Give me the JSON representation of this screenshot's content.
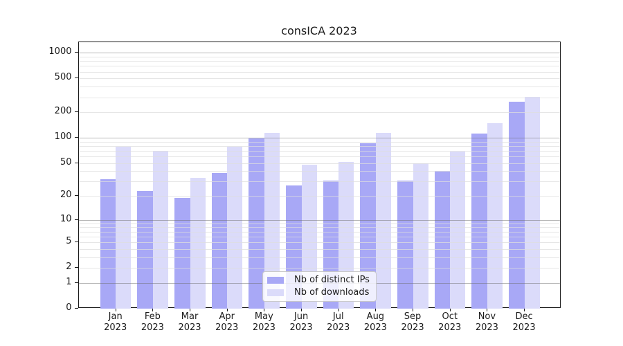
{
  "chart_data": {
    "type": "bar",
    "title": "consICA 2023",
    "scale": "log10(1+x)",
    "grid": true,
    "legend_position": "lower center",
    "categories": [
      "Jan",
      "Feb",
      "Mar",
      "Apr",
      "May",
      "Jun",
      "Jul",
      "Aug",
      "Sep",
      "Oct",
      "Nov",
      "Dec"
    ],
    "category_year": "2023",
    "series": [
      {
        "name": "Nb of distinct IPs",
        "color": "#a8a8f6",
        "values": [
          32,
          23,
          19,
          38,
          99,
          27,
          31,
          86,
          31,
          40,
          113,
          265
        ]
      },
      {
        "name": "Nb of downloads",
        "color": "#dbdbfa",
        "values": [
          78,
          70,
          33,
          78,
          114,
          48,
          52,
          115,
          50,
          68,
          149,
          305
        ]
      }
    ],
    "xlabel": "",
    "ylabel": "",
    "yticks": [
      0,
      1,
      2,
      5,
      10,
      20,
      50,
      100,
      200,
      500,
      1000
    ],
    "ylim": [
      0,
      1330
    ]
  },
  "colors": {
    "axis": "#1a1a1a",
    "grid_major": "#b6b6b6",
    "grid_minor": "#e6e6e6",
    "legend_border": "#c9c9c9"
  }
}
